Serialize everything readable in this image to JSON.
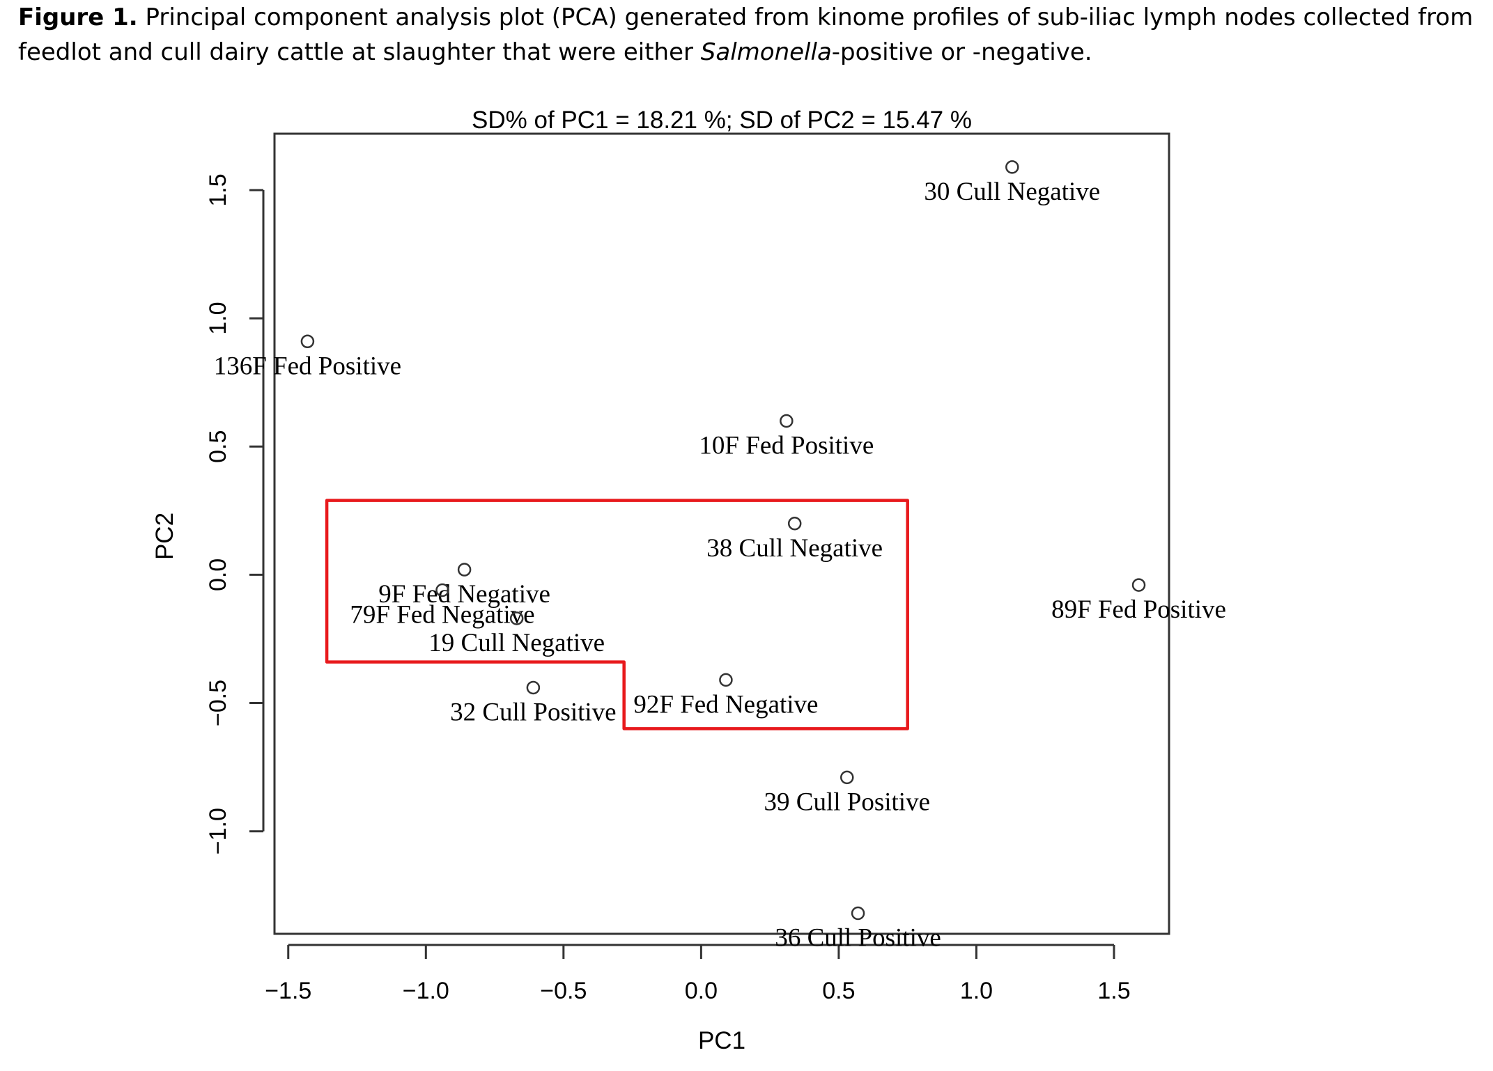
{
  "caption": {
    "figure_label": "Figure 1.",
    "text_before": " Principal component analysis plot (PCA) generated from kinome profiles of sub-iliac lymph nodes collected from feedlot and cull dairy cattle at slaughter that were either ",
    "italic": "Salmonella",
    "text_after": "-positive or -negative."
  },
  "chart_data": {
    "type": "scatter",
    "title": "SD% of PC1 =  18.21 %; SD of PC2 =  15.47 %",
    "xlabel": "PC1",
    "ylabel": "PC2",
    "xlim": [
      -1.55,
      1.7
    ],
    "ylim": [
      -1.4,
      1.72
    ],
    "xticks": [
      -1.5,
      -1.0,
      -0.5,
      0.0,
      0.5,
      1.0,
      1.5
    ],
    "xtick_labels": [
      "−1.5",
      "−1.0",
      "−0.5",
      "0.0",
      "0.5",
      "1.0",
      "1.5"
    ],
    "yticks": [
      -1.0,
      -0.5,
      0.0,
      0.5,
      1.0,
      1.5
    ],
    "ytick_labels": [
      "−1.0",
      "−0.5",
      "0.0",
      "0.5",
      "1.0",
      "1.5"
    ],
    "grid": false,
    "points": [
      {
        "label": "30 Cull Negative",
        "x": 1.13,
        "y": 1.59
      },
      {
        "label": "136F Fed Positive",
        "x": -1.43,
        "y": 0.91
      },
      {
        "label": "10F Fed Positive",
        "x": 0.31,
        "y": 0.6
      },
      {
        "label": "38 Cull Negative",
        "x": 0.34,
        "y": 0.2
      },
      {
        "label": "9F Fed Negative",
        "x": -0.86,
        "y": 0.02
      },
      {
        "label": "79F Fed Negative",
        "x": -0.94,
        "y": -0.06
      },
      {
        "label": "19 Cull Negative",
        "x": -0.67,
        "y": -0.17
      },
      {
        "label": "89F Fed Positive",
        "x": 1.59,
        "y": -0.04
      },
      {
        "label": "32 Cull Positive",
        "x": -0.61,
        "y": -0.44
      },
      {
        "label": "92F Fed Negative",
        "x": 0.09,
        "y": -0.41
      },
      {
        "label": "39 Cull Positive",
        "x": 0.53,
        "y": -0.79
      },
      {
        "label": "36 Cull Positive",
        "x": 0.57,
        "y": -1.32
      }
    ],
    "highlight": {
      "color": "#e8191c",
      "polygon": [
        [
          -1.36,
          0.29
        ],
        [
          0.75,
          0.29
        ],
        [
          0.75,
          -0.6
        ],
        [
          -0.28,
          -0.6
        ],
        [
          -0.28,
          -0.34
        ],
        [
          -1.36,
          -0.34
        ]
      ]
    }
  }
}
